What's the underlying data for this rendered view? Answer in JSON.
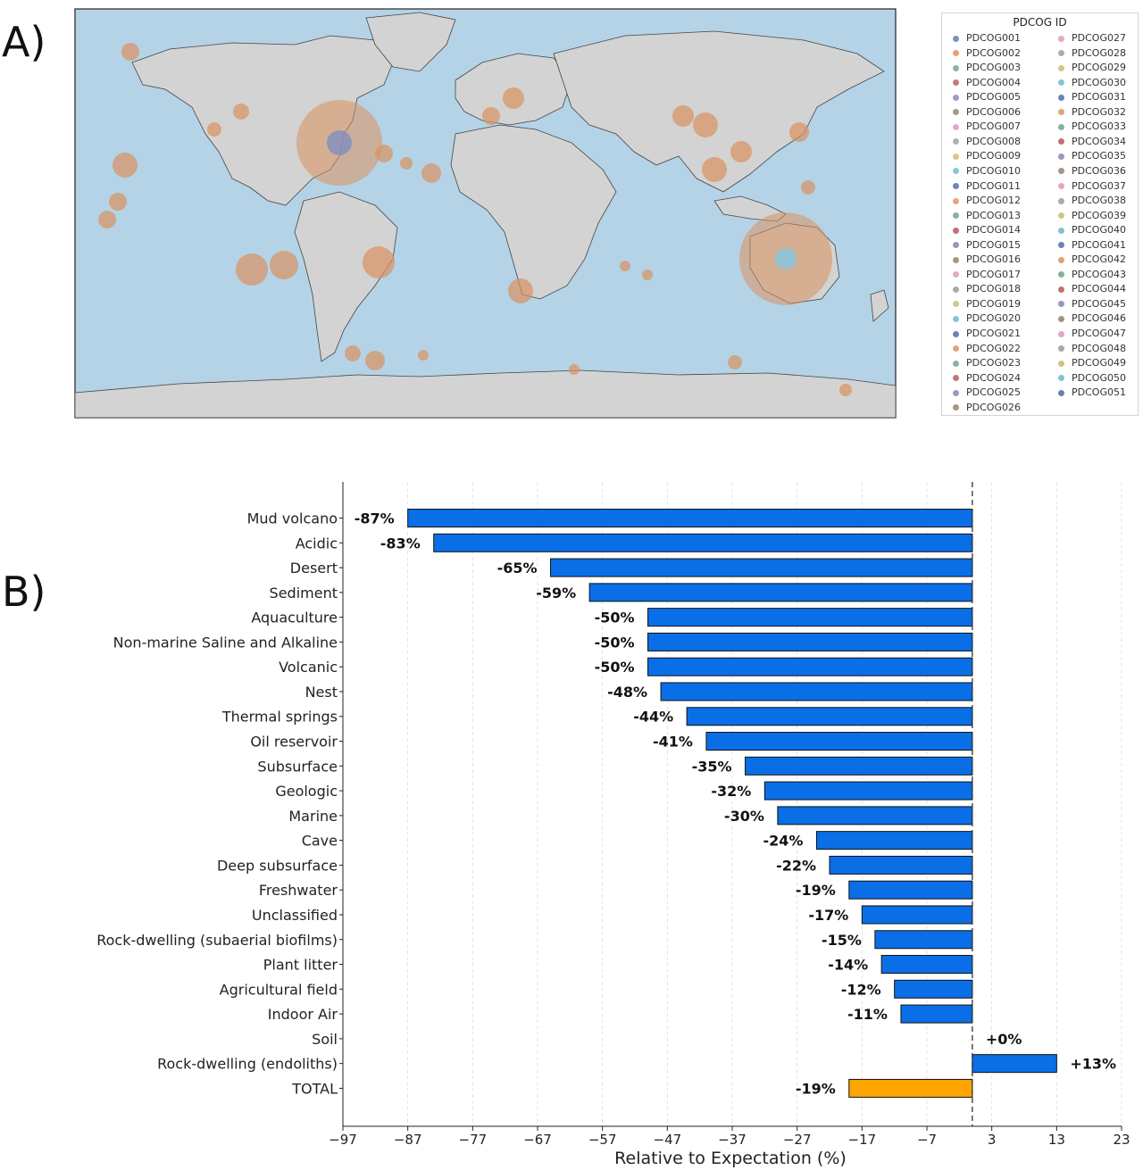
{
  "panel_labels": {
    "a": "A)",
    "b": "B)"
  },
  "legend": {
    "title": "PDCOG ID",
    "items": [
      {
        "label": "PDCOG001",
        "color": "#7f8fbf"
      },
      {
        "label": "PDCOG002",
        "color": "#e8a07a"
      },
      {
        "label": "PDCOG003",
        "color": "#8fb39a"
      },
      {
        "label": "PDCOG004",
        "color": "#c97a7a"
      },
      {
        "label": "PDCOG005",
        "color": "#a09ac8"
      },
      {
        "label": "PDCOG006",
        "color": "#a89a88"
      },
      {
        "label": "PDCOG007",
        "color": "#e6a8c8"
      },
      {
        "label": "PDCOG008",
        "color": "#b0b0b0"
      },
      {
        "label": "PDCOG009",
        "color": "#d4c98a"
      },
      {
        "label": "PDCOG010",
        "color": "#8cc4d8"
      },
      {
        "label": "PDCOG011",
        "color": "#6f86b8"
      },
      {
        "label": "PDCOG012",
        "color": "#e8a47c"
      },
      {
        "label": "PDCOG013",
        "color": "#86b496"
      },
      {
        "label": "PDCOG014",
        "color": "#c4707a"
      },
      {
        "label": "PDCOG015",
        "color": "#9c94c6"
      },
      {
        "label": "PDCOG016",
        "color": "#a89484"
      },
      {
        "label": "PDCOG017",
        "color": "#e4aac8"
      },
      {
        "label": "PDCOG018",
        "color": "#ababab"
      },
      {
        "label": "PDCOG019",
        "color": "#d2c884"
      },
      {
        "label": "PDCOG020",
        "color": "#88c2d6"
      },
      {
        "label": "PDCOG021",
        "color": "#6a82b6"
      },
      {
        "label": "PDCOG022",
        "color": "#e6a27a"
      },
      {
        "label": "PDCOG023",
        "color": "#88b498"
      },
      {
        "label": "PDCOG024",
        "color": "#c47478"
      },
      {
        "label": "PDCOG025",
        "color": "#9e98c6"
      },
      {
        "label": "PDCOG026",
        "color": "#a89686"
      },
      {
        "label": "PDCOG027",
        "color": "#e4a8c6"
      },
      {
        "label": "PDCOG028",
        "color": "#adadad"
      },
      {
        "label": "PDCOG029",
        "color": "#d2c886"
      },
      {
        "label": "PDCOG030",
        "color": "#8ac2d6"
      },
      {
        "label": "PDCOG031",
        "color": "#6c84b6"
      },
      {
        "label": "PDCOG032",
        "color": "#e6a27c"
      },
      {
        "label": "PDCOG033",
        "color": "#86b296"
      },
      {
        "label": "PDCOG034",
        "color": "#c27276"
      },
      {
        "label": "PDCOG035",
        "color": "#9c96c4"
      },
      {
        "label": "PDCOG036",
        "color": "#a69484"
      },
      {
        "label": "PDCOG037",
        "color": "#e2a6c4"
      },
      {
        "label": "PDCOG038",
        "color": "#ababab"
      },
      {
        "label": "PDCOG039",
        "color": "#d0c684"
      },
      {
        "label": "PDCOG040",
        "color": "#88c0d4"
      },
      {
        "label": "PDCOG041",
        "color": "#6a82b4"
      },
      {
        "label": "PDCOG042",
        "color": "#e4a07a"
      },
      {
        "label": "PDCOG043",
        "color": "#86b294"
      },
      {
        "label": "PDCOG044",
        "color": "#c07074"
      },
      {
        "label": "PDCOG045",
        "color": "#9a94c4"
      },
      {
        "label": "PDCOG046",
        "color": "#a49282"
      },
      {
        "label": "PDCOG047",
        "color": "#e2a4c4"
      },
      {
        "label": "PDCOG048",
        "color": "#a9a9a9"
      },
      {
        "label": "PDCOG049",
        "color": "#d0c482"
      },
      {
        "label": "PDCOG050",
        "color": "#86c0d4"
      },
      {
        "label": "PDCOG051",
        "color": "#6880b2"
      }
    ]
  },
  "map": {
    "ocean_color": "#b5d3e7",
    "land_color": "#d3d3d3",
    "bubble_color": "#d9915f",
    "inner_color": "#7f8fbf"
  },
  "chart_data": {
    "type": "bar",
    "orientation": "horizontal",
    "categories": [
      "Mud volcano",
      "Acidic",
      "Desert",
      "Sediment",
      "Aquaculture",
      "Non-marine Saline and Alkaline",
      "Volcanic",
      "Nest",
      "Thermal springs",
      "Oil reservoir",
      "Subsurface",
      "Geologic",
      "Marine",
      "Cave",
      "Deep subsurface",
      "Freshwater",
      "Unclassified",
      "Rock-dwelling (subaerial biofilms)",
      "Plant litter",
      "Agricultural field",
      "Indoor Air",
      "Soil",
      "Rock-dwelling (endoliths)",
      "TOTAL"
    ],
    "values": [
      -87,
      -83,
      -65,
      -59,
      -50,
      -50,
      -50,
      -48,
      -44,
      -41,
      -35,
      -32,
      -30,
      -24,
      -22,
      -19,
      -17,
      -15,
      -14,
      -12,
      -11,
      0,
      13,
      -19
    ],
    "data_labels": [
      "-87%",
      "-83%",
      "-65%",
      "-59%",
      "-50%",
      "-50%",
      "-50%",
      "-48%",
      "-44%",
      "-41%",
      "-35%",
      "-32%",
      "-30%",
      "-24%",
      "-22%",
      "-19%",
      "-17%",
      "-15%",
      "-14%",
      "-12%",
      "-11%",
      "+0%",
      "+13%",
      "-19%"
    ],
    "bar_colors": {
      "default": "#0a6fe6",
      "total": "#ffa500"
    },
    "xlabel": "Relative to Expectation (%)",
    "xlim": [
      -97,
      23
    ],
    "xticks": [
      -97,
      -87,
      -77,
      -67,
      -57,
      -47,
      -37,
      -27,
      -17,
      -7,
      3,
      13,
      23
    ],
    "xtick_labels": [
      "−97",
      "−87",
      "−77",
      "−67",
      "−57",
      "−47",
      "−37",
      "−27",
      "−17",
      "−7",
      "3",
      "13",
      "23"
    ],
    "reference_line": 0,
    "grid": "vertical-dashed"
  }
}
